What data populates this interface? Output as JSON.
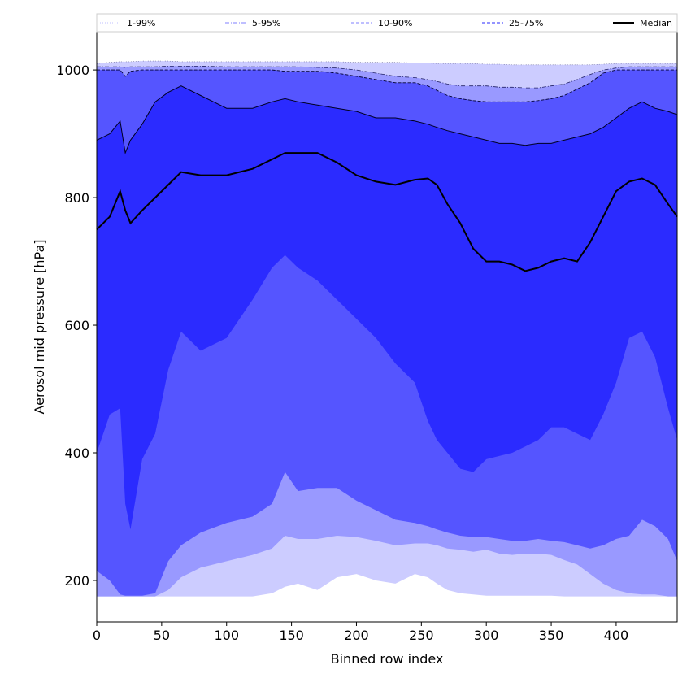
{
  "chart_data": {
    "type": "area",
    "title": "",
    "xlabel": "Binned row index",
    "ylabel": "Aerosol mid pressure [hPa]",
    "xlim": [
      0,
      447
    ],
    "ylim": [
      135,
      1060
    ],
    "xticks": [
      0,
      50,
      100,
      150,
      200,
      250,
      300,
      350,
      400
    ],
    "yticks": [
      200,
      400,
      600,
      800,
      1000
    ],
    "legend_position": "top (above plot, single row)",
    "legend": [
      {
        "label": "1-99%",
        "style": "dotted",
        "color": "#ccccff"
      },
      {
        "label": "5-95%",
        "style": "dashdot",
        "color": "#9999ff"
      },
      {
        "label": "10-90%",
        "style": "dashed",
        "color": "#9999ff"
      },
      {
        "label": "25-75%",
        "style": "dashed",
        "color": "#5555ff"
      },
      {
        "label": "Median",
        "style": "solid",
        "color": "#000000"
      }
    ],
    "x": [
      0,
      10,
      18,
      22,
      26,
      35,
      45,
      55,
      65,
      80,
      100,
      120,
      135,
      145,
      155,
      170,
      185,
      200,
      215,
      230,
      245,
      255,
      262,
      270,
      280,
      290,
      300,
      310,
      320,
      330,
      340,
      350,
      360,
      370,
      380,
      390,
      400,
      410,
      420,
      430,
      440,
      447
    ],
    "series": [
      {
        "name": "1-99%",
        "role": "lower",
        "values": [
          175,
          175,
          175,
          175,
          175,
          175,
          175,
          175,
          175,
          175,
          175,
          175,
          180,
          190,
          195,
          185,
          205,
          210,
          200,
          195,
          210,
          205,
          195,
          185,
          180,
          178,
          176,
          176,
          176,
          176,
          176,
          176,
          175,
          175,
          175,
          175,
          175,
          175,
          175,
          175,
          175,
          175
        ]
      },
      {
        "name": "5-95%",
        "role": "lower",
        "values": [
          175,
          175,
          175,
          175,
          175,
          175,
          175,
          185,
          205,
          220,
          230,
          240,
          250,
          270,
          265,
          265,
          270,
          268,
          262,
          255,
          258,
          258,
          255,
          250,
          248,
          245,
          248,
          242,
          240,
          242,
          242,
          240,
          232,
          225,
          210,
          195,
          185,
          180,
          178,
          178,
          175,
          175
        ]
      },
      {
        "name": "10-90%",
        "role": "lower",
        "values": [
          215,
          200,
          178,
          176,
          176,
          176,
          180,
          230,
          255,
          275,
          290,
          300,
          320,
          370,
          340,
          345,
          345,
          325,
          310,
          295,
          290,
          285,
          280,
          275,
          270,
          268,
          268,
          265,
          262,
          262,
          265,
          262,
          260,
          255,
          250,
          255,
          265,
          270,
          295,
          285,
          265,
          230
        ]
      },
      {
        "name": "25-75%",
        "role": "lower",
        "values": [
          400,
          460,
          470,
          320,
          280,
          390,
          430,
          530,
          590,
          560,
          580,
          640,
          690,
          710,
          690,
          670,
          640,
          610,
          580,
          540,
          510,
          450,
          420,
          400,
          375,
          370,
          390,
          395,
          400,
          410,
          420,
          440,
          440,
          430,
          420,
          460,
          510,
          580,
          590,
          550,
          470,
          420
        ]
      },
      {
        "name": "Median",
        "role": "median",
        "values": [
          750,
          770,
          810,
          780,
          760,
          780,
          800,
          820,
          840,
          835,
          835,
          845,
          860,
          870,
          870,
          870,
          855,
          835,
          825,
          820,
          828,
          830,
          820,
          790,
          760,
          720,
          700,
          700,
          695,
          685,
          690,
          700,
          705,
          700,
          730,
          770,
          810,
          825,
          830,
          820,
          790,
          770
        ]
      },
      {
        "name": "25-75%",
        "role": "upper",
        "values": [
          890,
          900,
          920,
          870,
          890,
          915,
          950,
          965,
          975,
          960,
          940,
          940,
          950,
          955,
          950,
          945,
          940,
          935,
          925,
          925,
          920,
          915,
          910,
          905,
          900,
          895,
          890,
          885,
          885,
          882,
          885,
          885,
          890,
          895,
          900,
          910,
          925,
          940,
          950,
          940,
          935,
          930
        ]
      },
      {
        "name": "10-90%",
        "role": "upper",
        "values": [
          1000,
          1000,
          1000,
          990,
          998,
          1000,
          1000,
          1000,
          1000,
          1000,
          1000,
          1000,
          1000,
          998,
          998,
          998,
          995,
          990,
          985,
          980,
          980,
          975,
          968,
          960,
          955,
          952,
          950,
          950,
          950,
          950,
          952,
          955,
          960,
          970,
          980,
          995,
          1000,
          1000,
          1000,
          1000,
          1000,
          1000
        ]
      },
      {
        "name": "5-95%",
        "role": "upper",
        "values": [
          1005,
          1005,
          1005,
          1004,
          1005,
          1005,
          1005,
          1006,
          1006,
          1006,
          1005,
          1005,
          1005,
          1005,
          1005,
          1004,
          1003,
          1000,
          995,
          990,
          988,
          985,
          982,
          978,
          975,
          975,
          975,
          973,
          973,
          972,
          972,
          975,
          978,
          985,
          993,
          1000,
          1003,
          1005,
          1005,
          1005,
          1005,
          1005
        ]
      },
      {
        "name": "1-99%",
        "role": "upper",
        "values": [
          1010,
          1012,
          1013,
          1013,
          1013,
          1014,
          1014,
          1014,
          1013,
          1013,
          1013,
          1013,
          1013,
          1013,
          1013,
          1013,
          1013,
          1012,
          1012,
          1012,
          1011,
          1011,
          1010,
          1010,
          1010,
          1010,
          1009,
          1009,
          1008,
          1008,
          1008,
          1008,
          1008,
          1008,
          1008,
          1009,
          1010,
          1010,
          1010,
          1010,
          1010,
          1010
        ]
      }
    ],
    "fill_colors": {
      "outer_band": "#ccccff",
      "band_5_95": "#9999ff",
      "band_10_90": "#5555ff",
      "band_25_75": "#2b2bff",
      "median_line": "#000000"
    }
  }
}
